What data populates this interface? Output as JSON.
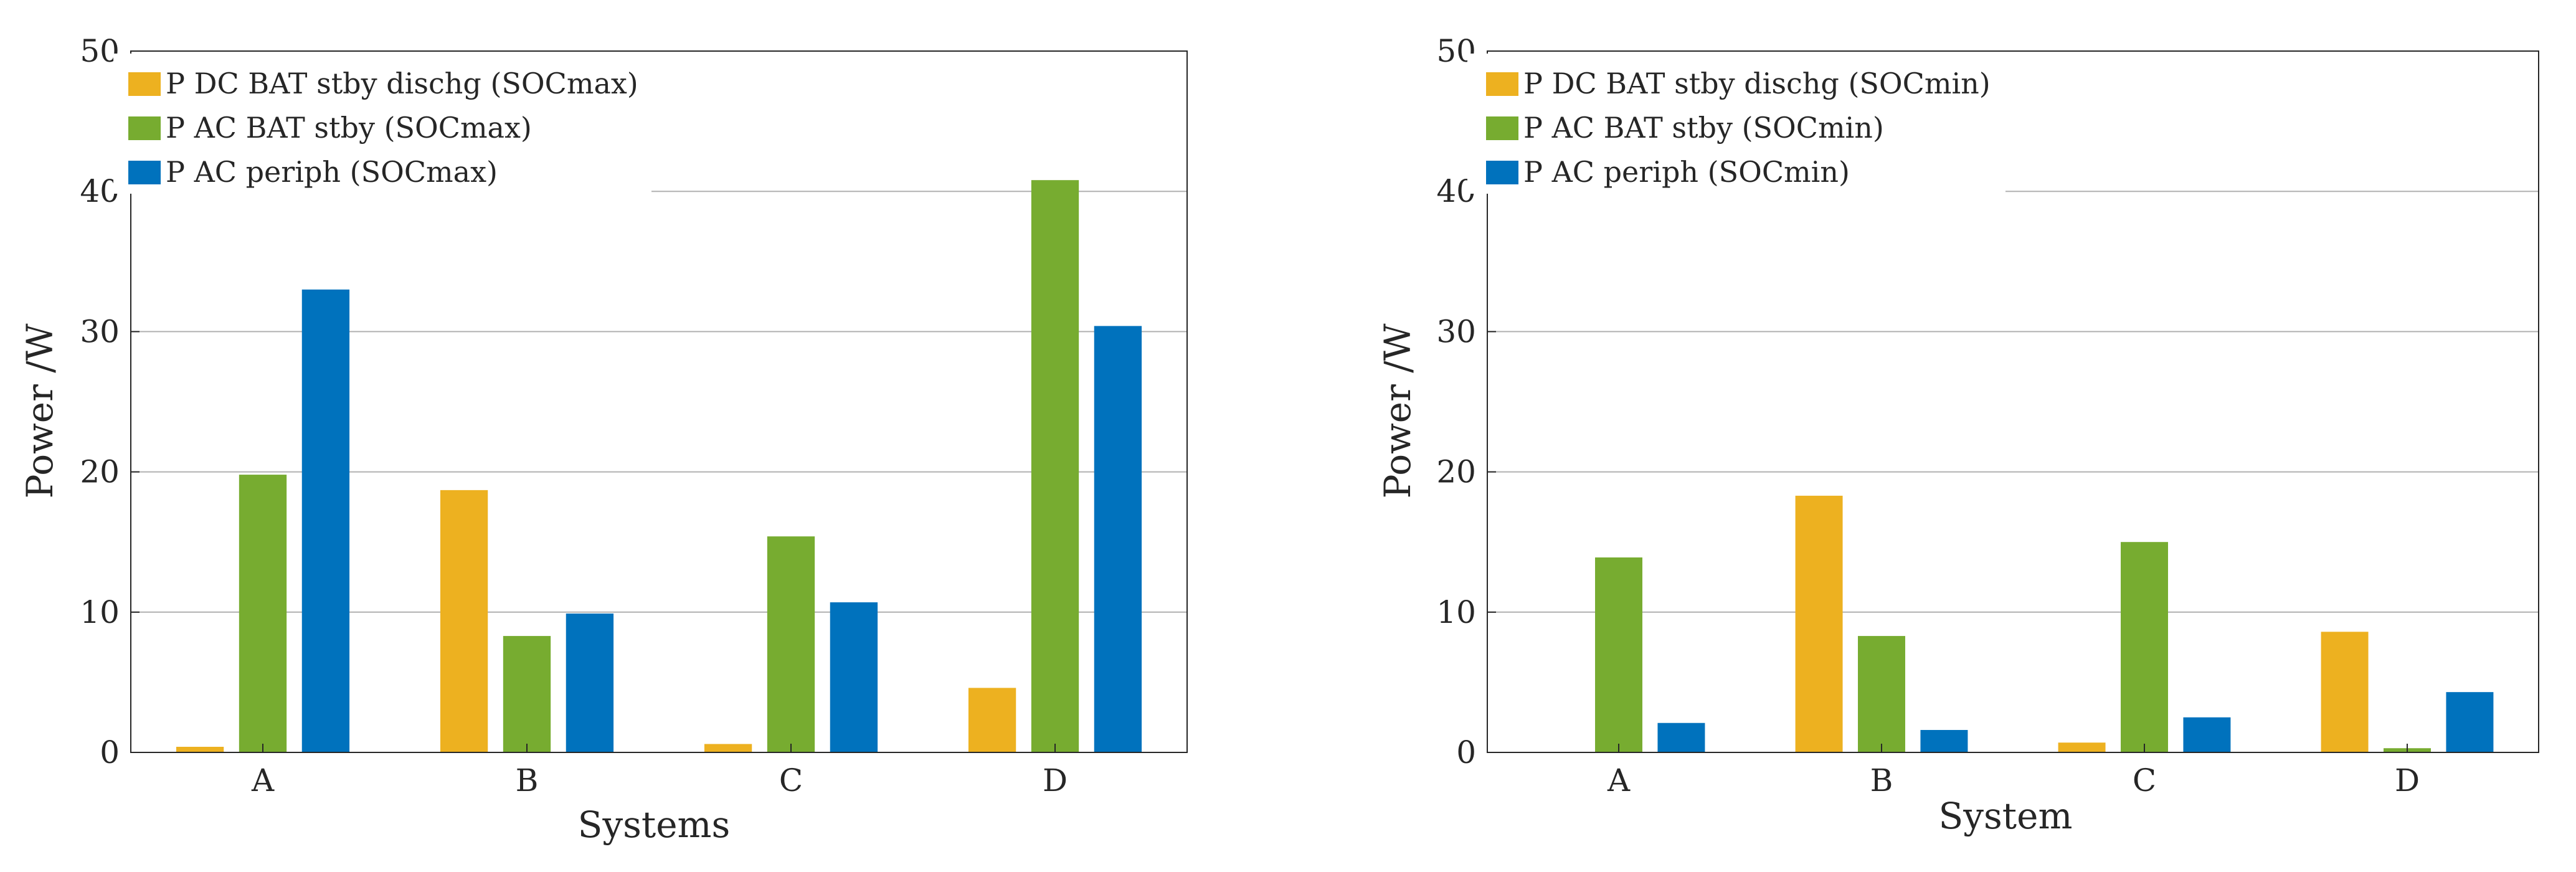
{
  "chart_data": [
    {
      "type": "bar",
      "title": "",
      "xlabel": "Systems",
      "ylabel": "Power /W",
      "ylim": [
        0,
        50
      ],
      "yticks": [
        0,
        10,
        20,
        30,
        40,
        50
      ],
      "grid": true,
      "legend_position": "top-left",
      "categories": [
        "A",
        "B",
        "C",
        "D"
      ],
      "series": [
        {
          "name": "P DC BAT stby dischg (SOCmax)",
          "color": "#EDB120",
          "values": [
            0.4,
            18.7,
            0.6,
            4.6
          ]
        },
        {
          "name": "P AC BAT stby (SOCmax)",
          "color": "#77AC30",
          "values": [
            19.8,
            8.3,
            15.4,
            40.8
          ]
        },
        {
          "name": "P AC periph (SOCmax)",
          "color": "#0072BD",
          "values": [
            33.0,
            9.9,
            10.7,
            30.4
          ]
        }
      ]
    },
    {
      "type": "bar",
      "title": "",
      "xlabel": "System",
      "ylabel": "Power /W",
      "ylim": [
        0,
        50
      ],
      "yticks": [
        0,
        10,
        20,
        30,
        40,
        50
      ],
      "grid": true,
      "legend_position": "top-left",
      "categories": [
        "A",
        "B",
        "C",
        "D"
      ],
      "series": [
        {
          "name": "P DC BAT stby dischg (SOCmin)",
          "color": "#EDB120",
          "values": [
            0.0,
            18.3,
            0.7,
            8.6
          ]
        },
        {
          "name": "P AC BAT stby (SOCmin)",
          "color": "#77AC30",
          "values": [
            13.9,
            8.3,
            15.0,
            0.3
          ]
        },
        {
          "name": "P AC periph (SOCmin)",
          "color": "#0072BD",
          "values": [
            2.1,
            1.6,
            2.5,
            4.3
          ]
        }
      ]
    }
  ]
}
